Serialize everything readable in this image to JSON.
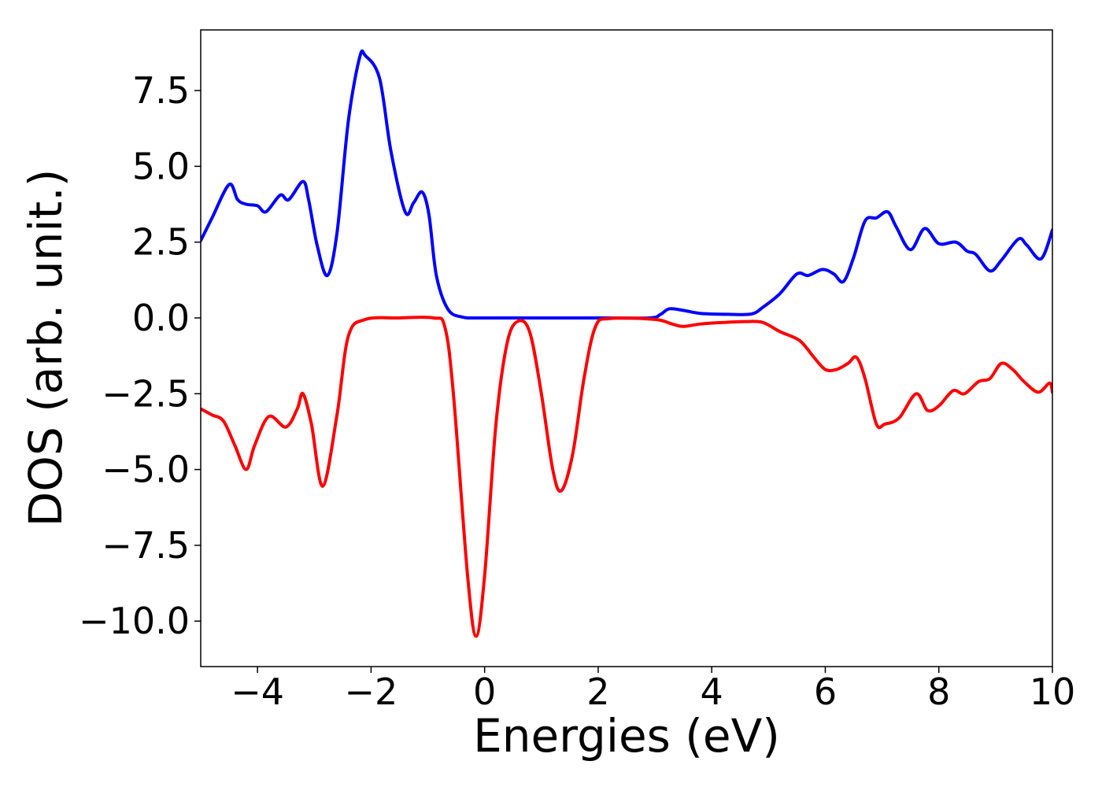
{
  "chart_data": {
    "type": "line",
    "title": "",
    "xlabel": "Energies (eV)",
    "ylabel": "DOS (arb. unit.)",
    "xlim": [
      -5,
      10
    ],
    "ylim": [
      -11.5,
      9.5
    ],
    "grid": false,
    "legend": "none",
    "x_ticks": [
      -4,
      -2,
      0,
      2,
      4,
      6,
      8,
      10
    ],
    "x_tick_labels": [
      "−4",
      "−2",
      "0",
      "2",
      "4",
      "6",
      "8",
      "10"
    ],
    "y_ticks": [
      7.5,
      5.0,
      2.5,
      0.0,
      -2.5,
      -5.0,
      -7.5,
      -10.0
    ],
    "y_tick_labels": [
      "7.5",
      "5.0",
      "2.5",
      "0.0",
      "−2.5",
      "−5.0",
      "−7.5",
      "−10.0"
    ],
    "series": [
      {
        "color": "#0000ff",
        "points": [
          [
            -5.0,
            2.55
          ],
          [
            -4.8,
            3.3
          ],
          [
            -4.5,
            4.4
          ],
          [
            -4.35,
            3.9
          ],
          [
            -4.2,
            3.75
          ],
          [
            -4.0,
            3.7
          ],
          [
            -3.85,
            3.5
          ],
          [
            -3.6,
            4.05
          ],
          [
            -3.45,
            3.9
          ],
          [
            -3.2,
            4.5
          ],
          [
            -3.1,
            3.9
          ],
          [
            -2.95,
            2.4
          ],
          [
            -2.77,
            1.4
          ],
          [
            -2.6,
            2.8
          ],
          [
            -2.4,
            6.5
          ],
          [
            -2.2,
            8.6
          ],
          [
            -2.1,
            8.65
          ],
          [
            -1.85,
            7.9
          ],
          [
            -1.65,
            5.5
          ],
          [
            -1.4,
            3.5
          ],
          [
            -1.25,
            3.8
          ],
          [
            -1.1,
            4.15
          ],
          [
            -0.98,
            3.4
          ],
          [
            -0.85,
            1.4
          ],
          [
            -0.65,
            0.3
          ],
          [
            -0.4,
            0.03
          ],
          [
            0.0,
            0.0
          ],
          [
            1.0,
            0.0
          ],
          [
            2.0,
            0.0
          ],
          [
            2.9,
            0.0
          ],
          [
            3.1,
            0.12
          ],
          [
            3.25,
            0.3
          ],
          [
            3.5,
            0.25
          ],
          [
            3.8,
            0.15
          ],
          [
            4.3,
            0.12
          ],
          [
            4.7,
            0.13
          ],
          [
            4.9,
            0.35
          ],
          [
            5.2,
            0.8
          ],
          [
            5.5,
            1.45
          ],
          [
            5.7,
            1.4
          ],
          [
            5.95,
            1.6
          ],
          [
            6.15,
            1.45
          ],
          [
            6.32,
            1.2
          ],
          [
            6.5,
            2.0
          ],
          [
            6.7,
            3.2
          ],
          [
            6.9,
            3.3
          ],
          [
            7.1,
            3.5
          ],
          [
            7.25,
            3.0
          ],
          [
            7.5,
            2.25
          ],
          [
            7.75,
            2.95
          ],
          [
            8.0,
            2.45
          ],
          [
            8.3,
            2.5
          ],
          [
            8.5,
            2.2
          ],
          [
            8.65,
            2.1
          ],
          [
            8.9,
            1.55
          ],
          [
            9.1,
            1.9
          ],
          [
            9.4,
            2.6
          ],
          [
            9.55,
            2.4
          ],
          [
            9.8,
            1.95
          ],
          [
            10.0,
            2.9
          ]
        ]
      },
      {
        "color": "#ff0000",
        "points": [
          [
            -5.0,
            -3.0
          ],
          [
            -4.8,
            -3.2
          ],
          [
            -4.6,
            -3.4
          ],
          [
            -4.4,
            -4.2
          ],
          [
            -4.2,
            -5.0
          ],
          [
            -4.05,
            -4.2
          ],
          [
            -3.8,
            -3.25
          ],
          [
            -3.5,
            -3.6
          ],
          [
            -3.3,
            -3.0
          ],
          [
            -3.2,
            -2.5
          ],
          [
            -3.05,
            -3.5
          ],
          [
            -2.85,
            -5.55
          ],
          [
            -2.6,
            -3.2
          ],
          [
            -2.4,
            -0.6
          ],
          [
            -2.1,
            -0.05
          ],
          [
            -1.5,
            0.0
          ],
          [
            -0.9,
            0.0
          ],
          [
            -0.7,
            -0.3
          ],
          [
            -0.55,
            -2.5
          ],
          [
            -0.3,
            -8.5
          ],
          [
            -0.15,
            -10.5
          ],
          [
            0.0,
            -8.5
          ],
          [
            0.2,
            -3.5
          ],
          [
            0.4,
            -0.8
          ],
          [
            0.6,
            -0.1
          ],
          [
            0.8,
            -0.5
          ],
          [
            1.0,
            -2.5
          ],
          [
            1.2,
            -5.0
          ],
          [
            1.35,
            -5.7
          ],
          [
            1.55,
            -4.5
          ],
          [
            1.75,
            -2.0
          ],
          [
            1.95,
            -0.3
          ],
          [
            2.2,
            -0.02
          ],
          [
            3.0,
            -0.05
          ],
          [
            3.3,
            -0.2
          ],
          [
            3.5,
            -0.28
          ],
          [
            3.8,
            -0.2
          ],
          [
            4.2,
            -0.15
          ],
          [
            4.6,
            -0.12
          ],
          [
            4.9,
            -0.15
          ],
          [
            5.2,
            -0.45
          ],
          [
            5.55,
            -0.75
          ],
          [
            5.8,
            -1.3
          ],
          [
            6.0,
            -1.7
          ],
          [
            6.2,
            -1.7
          ],
          [
            6.4,
            -1.5
          ],
          [
            6.55,
            -1.3
          ],
          [
            6.7,
            -2.0
          ],
          [
            6.9,
            -3.5
          ],
          [
            7.05,
            -3.5
          ],
          [
            7.3,
            -3.3
          ],
          [
            7.6,
            -2.5
          ],
          [
            7.8,
            -3.05
          ],
          [
            8.0,
            -2.9
          ],
          [
            8.25,
            -2.4
          ],
          [
            8.45,
            -2.5
          ],
          [
            8.7,
            -2.1
          ],
          [
            8.9,
            -2.0
          ],
          [
            9.1,
            -1.5
          ],
          [
            9.3,
            -1.7
          ],
          [
            9.5,
            -2.1
          ],
          [
            9.75,
            -2.45
          ],
          [
            9.95,
            -2.15
          ],
          [
            10.0,
            -2.45
          ]
        ]
      }
    ]
  }
}
